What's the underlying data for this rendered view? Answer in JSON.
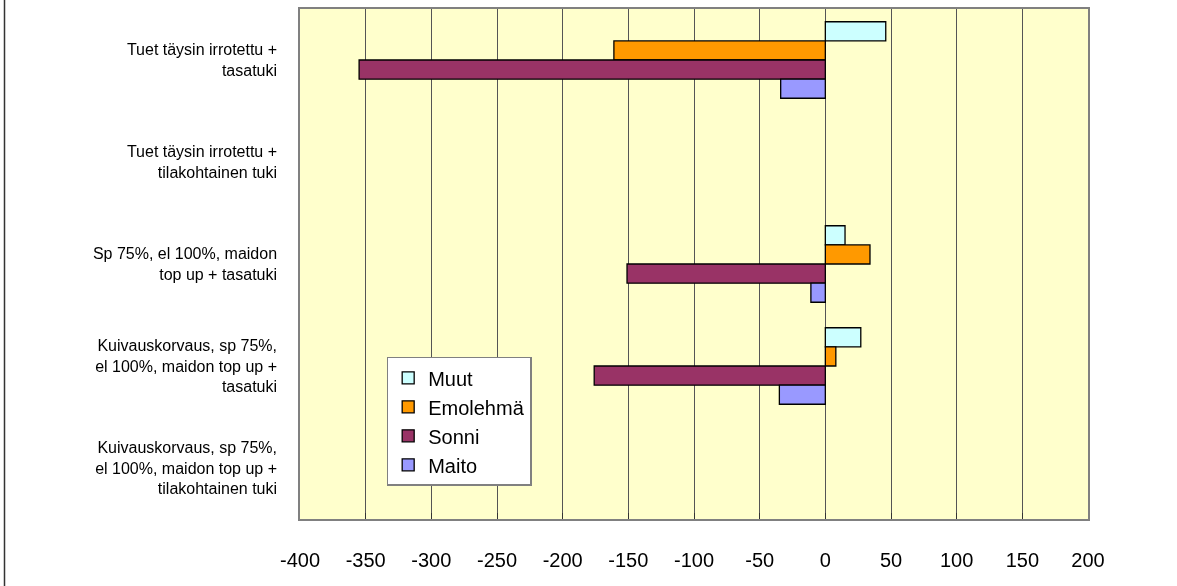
{
  "chart_data": {
    "type": "bar",
    "orientation": "horizontal",
    "categories": [
      "Tuet täysin irrotettu + tasatuki",
      "Tuet täysin irrotettu + tilakohtainen tuki",
      "Sp 75%, el 100%, maidon top up + tasatuki",
      "Kuivauskorvaus, sp 75%, el 100%, maidon top up + tasatuki",
      "Kuivauskorvaus, sp 75%, el 100%, maidon top up + tilakohtainen tuki"
    ],
    "series": [
      {
        "name": "Muut",
        "color": "#ccffff",
        "values": [
          46,
          null,
          15,
          27,
          null
        ]
      },
      {
        "name": "Emolehmä",
        "color": "#ff9900",
        "values": [
          -161,
          null,
          34,
          8,
          null
        ]
      },
      {
        "name": "Sonni",
        "color": "#993366",
        "values": [
          -355,
          null,
          -151,
          -176,
          null
        ]
      },
      {
        "name": "Maito",
        "color": "#9999ff",
        "values": [
          -34,
          null,
          -11,
          -35,
          null
        ]
      }
    ],
    "xlim": [
      -400,
      200
    ],
    "xticks": [
      -400,
      -350,
      -300,
      -250,
      -200,
      -150,
      -100,
      -50,
      0,
      50,
      100,
      150,
      200
    ],
    "grid": "x",
    "legend": "bottom left"
  }
}
